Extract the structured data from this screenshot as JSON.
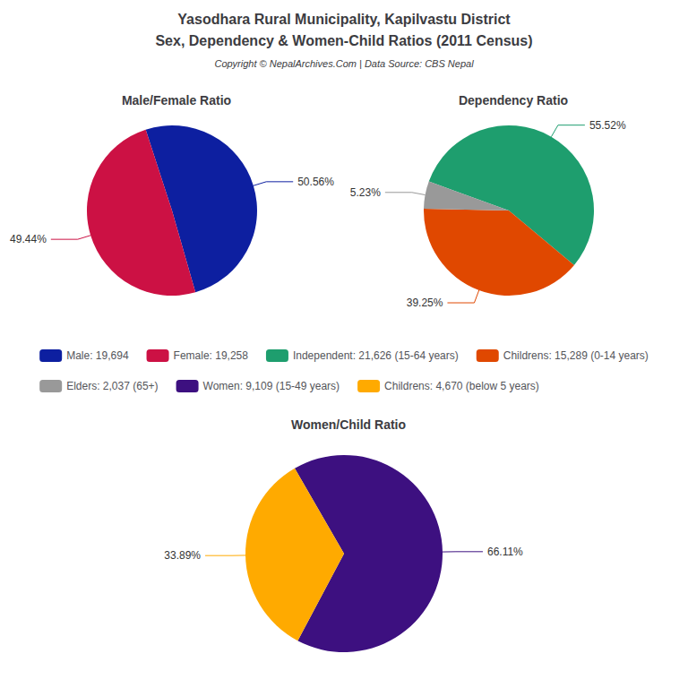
{
  "title": "Yasodhara Rural Municipality, Kapilvastu District",
  "subtitle": "Sex, Dependency & Women-Child Ratios (2011 Census)",
  "annotations": [
    "Copyright © NepalArchives.Com | Data Source: CBS Nepal"
  ],
  "legend": "center",
  "chart_data": [
    {
      "type": "pie",
      "title": "Male/Female Ratio",
      "categories": [
        "Male: 19,694",
        "Female: 19,258"
      ],
      "values": [
        50.56,
        49.44
      ],
      "value_labels": [
        "50.56%",
        "49.44%"
      ],
      "colors": [
        "#0d1fa0",
        "#cc1144"
      ],
      "data_labels": true
    },
    {
      "type": "pie",
      "title": "Dependency Ratio",
      "categories": [
        "Independent: 21,626 (15-64 years)",
        "Childrens: 15,289 (0-14 years)",
        "Elders: 2,037 (65+)"
      ],
      "values": [
        55.52,
        39.25,
        5.23
      ],
      "value_labels": [
        "55.52%",
        "39.25%",
        "5.23%"
      ],
      "colors": [
        "#1e9e6e",
        "#e04800",
        "#999999"
      ],
      "data_labels": true
    },
    {
      "type": "pie",
      "title": "Women/Child Ratio",
      "categories": [
        "Women: 9,109 (15-49 years)",
        "Childrens: 4,670 (below 5 years)"
      ],
      "values": [
        66.11,
        33.89
      ],
      "value_labels": [
        "66.11%",
        "33.89%"
      ],
      "colors": [
        "#3d1080",
        "#ffaa00"
      ],
      "data_labels": true
    }
  ]
}
